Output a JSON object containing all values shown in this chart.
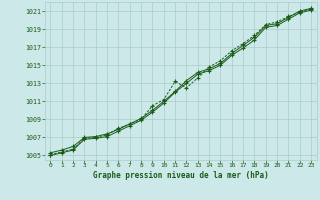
{
  "background_color": "#cce8e8",
  "grid_color": "#aacccc",
  "line_color": "#1a5c1a",
  "xlabel": "Graphe pression niveau de la mer (hPa)",
  "ylim": [
    1004.5,
    1022.0
  ],
  "yticks": [
    1005,
    1007,
    1009,
    1011,
    1013,
    1015,
    1017,
    1019,
    1021
  ],
  "xlim": [
    -0.5,
    23.5
  ],
  "xticks": [
    0,
    1,
    2,
    3,
    4,
    5,
    6,
    7,
    8,
    9,
    10,
    11,
    12,
    13,
    14,
    15,
    16,
    17,
    18,
    19,
    20,
    21,
    22,
    23
  ],
  "line1_y": [
    1005.3,
    1005.6,
    1006.0,
    1007.0,
    1007.1,
    1007.4,
    1007.9,
    1008.5,
    1009.1,
    1010.0,
    1011.0,
    1012.1,
    1013.3,
    1014.2,
    1014.6,
    1015.2,
    1016.3,
    1017.2,
    1018.1,
    1019.4,
    1019.6,
    1020.3,
    1021.0,
    1021.3
  ],
  "line2_y": [
    1005.1,
    1005.4,
    1005.7,
    1006.9,
    1007.0,
    1007.3,
    1008.0,
    1008.5,
    1009.0,
    1010.5,
    1011.2,
    1013.2,
    1012.5,
    1013.6,
    1014.8,
    1015.5,
    1016.6,
    1017.4,
    1018.3,
    1019.5,
    1019.8,
    1020.4,
    1020.9,
    1021.2
  ],
  "line3_y": [
    1005.0,
    1005.3,
    1005.6,
    1006.8,
    1006.9,
    1007.1,
    1007.7,
    1008.3,
    1008.9,
    1009.8,
    1010.8,
    1012.0,
    1013.0,
    1014.0,
    1014.4,
    1015.0,
    1016.1,
    1016.9,
    1017.8,
    1019.2,
    1019.4,
    1020.1,
    1020.8,
    1021.1
  ]
}
